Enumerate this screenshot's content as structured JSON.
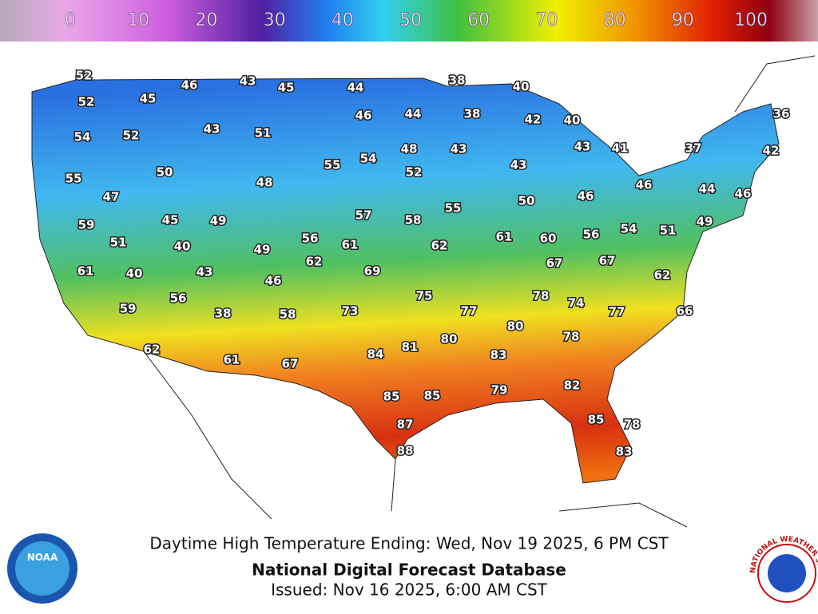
{
  "colorbar": {
    "labels": [
      0,
      10,
      20,
      30,
      40,
      50,
      60,
      70,
      80,
      90,
      100
    ]
  },
  "map": {
    "stations": [
      52,
      46,
      43,
      45,
      44,
      38,
      40,
      52,
      45,
      46,
      44,
      38,
      42,
      40,
      36,
      54,
      52,
      43,
      51,
      48,
      43,
      43,
      41,
      37,
      42,
      55,
      50,
      48,
      55,
      54,
      52,
      43,
      46,
      44,
      46,
      47,
      46,
      45,
      49,
      57,
      58,
      55,
      50,
      59,
      51,
      40,
      49,
      56,
      61,
      62,
      61,
      60,
      56,
      54,
      51,
      49,
      61,
      40,
      43,
      46,
      62,
      69,
      67,
      67,
      62,
      56,
      75,
      77,
      78,
      74,
      77,
      66,
      59,
      38,
      58,
      73,
      80,
      78,
      62,
      84,
      81,
      80,
      83,
      61,
      67,
      82,
      85,
      85,
      79,
      87,
      85,
      78,
      88,
      83
    ]
  },
  "footer": {
    "subtitle": "Daytime High Temperature Ending: Wed, Nov 19 2025, 6 PM CST",
    "title": "National Digital Forecast Database",
    "issued": "Issued: Nov 16 2025, 6:00 AM CST"
  },
  "logos": {
    "noaa": "NOAA",
    "nws": "NATIONAL WEATHER SERVICE"
  }
}
